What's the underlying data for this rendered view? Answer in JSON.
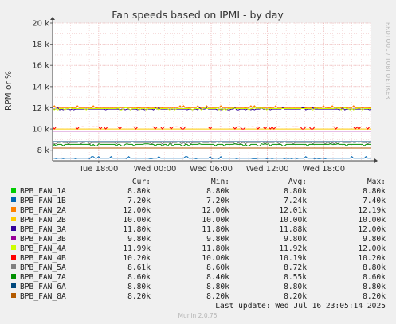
{
  "chart_data": {
    "type": "line",
    "title": "Fan speeds based on IPMI - by day",
    "ylabel": "RPM or %",
    "ylim": [
      7000,
      20000
    ],
    "y_ticks": [
      {
        "value": 8000,
        "label": "8 k"
      },
      {
        "value": 10000,
        "label": "10 k"
      },
      {
        "value": 12000,
        "label": "12 k"
      },
      {
        "value": 14000,
        "label": "14 k"
      },
      {
        "value": 16000,
        "label": "16 k"
      },
      {
        "value": 18000,
        "label": "18 k"
      },
      {
        "value": 20000,
        "label": "20 k"
      }
    ],
    "x_ticks": [
      "Tue 18:00",
      "Wed 00:00",
      "Wed 06:00",
      "Wed 12:00",
      "Wed 18:00"
    ],
    "x_tick_hours": [
      18,
      24,
      30,
      36,
      42
    ],
    "x_range_hours": [
      13.08,
      47.08
    ],
    "grid": true,
    "legend_headers": [
      "Cur:",
      "Min:",
      "Avg:",
      "Max:"
    ],
    "series": [
      {
        "name": "BPB_FAN_1A",
        "color": "#00cc00",
        "value": 8800,
        "cur": "8.80k",
        "min": "8.80k",
        "avg": "8.80k",
        "max": "8.80k"
      },
      {
        "name": "BPB_FAN_1B",
        "color": "#0066b3",
        "value": 7200,
        "cur": "7.20k",
        "min": "7.20k",
        "avg": "7.24k",
        "max": "7.40k"
      },
      {
        "name": "BPB_FAN_2A",
        "color": "#ff8000",
        "value": 12000,
        "cur": "12.00k",
        "min": "12.00k",
        "avg": "12.01k",
        "max": "12.19k"
      },
      {
        "name": "BPB_FAN_2B",
        "color": "#ffcc00",
        "value": 10000,
        "cur": "10.00k",
        "min": "10.00k",
        "avg": "10.00k",
        "max": "10.00k"
      },
      {
        "name": "BPB_FAN_3A",
        "color": "#330099",
        "value": 11800,
        "cur": "11.80k",
        "min": "11.80k",
        "avg": "11.88k",
        "max": "12.00k"
      },
      {
        "name": "BPB_FAN_3B",
        "color": "#990099",
        "value": 9800,
        "cur": "9.80k",
        "min": "9.80k",
        "avg": "9.80k",
        "max": "9.80k"
      },
      {
        "name": "BPB_FAN_4A",
        "color": "#ccff00",
        "value": 11990,
        "cur": "11.99k",
        "min": "11.80k",
        "avg": "11.92k",
        "max": "12.00k"
      },
      {
        "name": "BPB_FAN_4B",
        "color": "#ff0000",
        "value": 10200,
        "cur": "10.20k",
        "min": "10.00k",
        "avg": "10.19k",
        "max": "10.20k"
      },
      {
        "name": "BPB_FAN_5A",
        "color": "#808080",
        "value": 8610,
        "cur": "8.61k",
        "min": "8.60k",
        "avg": "8.72k",
        "max": "8.80k"
      },
      {
        "name": "BPB_FAN_7A",
        "color": "#008f00",
        "value": 8600,
        "cur": "8.60k",
        "min": "8.40k",
        "avg": "8.55k",
        "max": "8.60k"
      },
      {
        "name": "BPB_FAN_6A",
        "color": "#00487d",
        "value": 8800,
        "cur": "8.80k",
        "min": "8.80k",
        "avg": "8.80k",
        "max": "8.80k"
      },
      {
        "name": "BPB_FAN_8A",
        "color": "#b35a00",
        "value": 8200,
        "cur": "8.20k",
        "min": "8.20k",
        "avg": "8.20k",
        "max": "8.20k"
      }
    ]
  },
  "side_label": "RRDTOOL / TOBI OETIKER",
  "last_update": "Last update: Wed Jul 16 23:05:14 2025",
  "footer": "Munin 2.0.75"
}
